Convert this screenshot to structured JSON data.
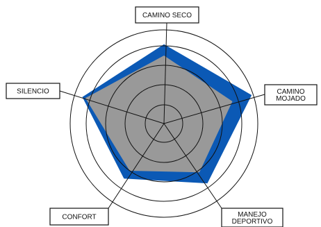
{
  "chart_data": {
    "type": "radar",
    "axes": [
      {
        "label": "CAMINO SECO",
        "lines": [
          "CAMINO SECO"
        ]
      },
      {
        "label": "CAMINO MOJADO",
        "lines": [
          "CAMINO",
          "MOJADO"
        ]
      },
      {
        "label": "MANEJO DEPORTIVO",
        "lines": [
          "MANEJO",
          "DEPORTIVO"
        ]
      },
      {
        "label": "CONFORT",
        "lines": [
          "CONFORT"
        ]
      },
      {
        "label": "SILENCIO",
        "lines": [
          "SILENCIO"
        ]
      }
    ],
    "rlim": [
      0,
      5
    ],
    "rings": [
      1,
      2,
      3,
      4,
      5
    ],
    "series": [
      {
        "values": [
          4.1,
          4.9,
          3.8,
          3.5,
          4.5
        ],
        "color": "#0b59b5"
      },
      {
        "values": [
          3.5,
          3.7,
          3.1,
          3.0,
          4.3
        ],
        "color": "#999999"
      }
    ]
  }
}
